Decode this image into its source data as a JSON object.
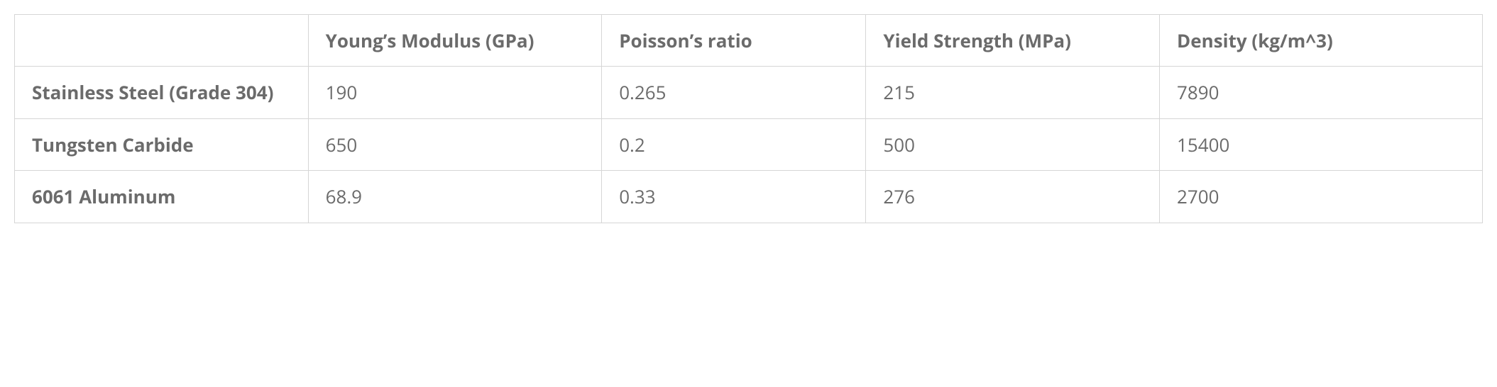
{
  "table": {
    "type": "table",
    "background_color": "#ffffff",
    "border_color": "#d6d6d6",
    "text_color": "#6b6b6b",
    "font_size": 26,
    "header_font_weight": 700,
    "cell_font_weight": 400,
    "row_header_font_weight": 700,
    "padding": "18px 24px",
    "columns": [
      {
        "key": "material",
        "label": "",
        "width": "20%"
      },
      {
        "key": "youngs_modulus",
        "label": "Young’s Modulus (GPa)",
        "width": "20%"
      },
      {
        "key": "poisson",
        "label": "Poisson’s ratio",
        "width": "18%"
      },
      {
        "key": "yield",
        "label": "Yield Strength (MPa)",
        "width": "20%"
      },
      {
        "key": "density",
        "label": "Density (kg/m^3)",
        "width": "22%"
      }
    ],
    "rows": [
      {
        "material": "Stainless Steel (Grade 304)",
        "youngs_modulus": "190",
        "poisson": "0.265",
        "yield": "215",
        "density": "7890"
      },
      {
        "material": "Tungsten Carbide",
        "youngs_modulus": "650",
        "poisson": "0.2",
        "yield": "500",
        "density": "15400"
      },
      {
        "material": "6061 Aluminum",
        "youngs_modulus": "68.9",
        "poisson": "0.33",
        "yield": "276",
        "density": "2700"
      }
    ]
  }
}
